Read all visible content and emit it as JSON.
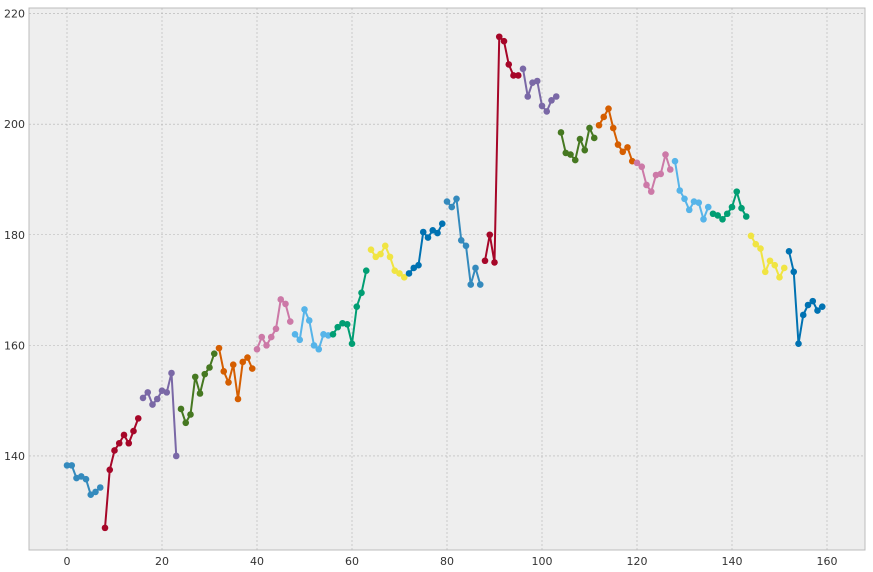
{
  "chart_data": {
    "type": "line",
    "title": "",
    "xlabel": "",
    "ylabel": "",
    "xlim": [
      -8,
      168
    ],
    "ylim": [
      123,
      221
    ],
    "xticks": [
      0,
      20,
      40,
      60,
      80,
      100,
      120,
      140,
      160
    ],
    "yticks": [
      140,
      160,
      180,
      200,
      220
    ],
    "grid": true,
    "legend": "none",
    "marker": "circle",
    "series": [
      {
        "color": "#348ABD",
        "points": [
          [
            0,
            138.3
          ],
          [
            1,
            138.3
          ],
          [
            2,
            136
          ],
          [
            3,
            136.3
          ],
          [
            4,
            135.8
          ],
          [
            5,
            133
          ],
          [
            6,
            133.5
          ],
          [
            7,
            134.3
          ]
        ]
      },
      {
        "color": "#A60628",
        "points": [
          [
            8,
            127
          ],
          [
            9,
            137.5
          ],
          [
            10,
            141
          ],
          [
            11,
            142.3
          ],
          [
            12,
            143.8
          ],
          [
            13,
            142.3
          ],
          [
            14,
            144.5
          ],
          [
            15,
            146.8
          ]
        ]
      },
      {
        "color": "#7A68A6",
        "points": [
          [
            16,
            150.5
          ],
          [
            17,
            151.5
          ],
          [
            18,
            149.3
          ],
          [
            19,
            150.3
          ],
          [
            20,
            151.8
          ],
          [
            21,
            151.5
          ],
          [
            22,
            155
          ],
          [
            23,
            140
          ]
        ]
      },
      {
        "color": "#467821",
        "points": [
          [
            24,
            148.5
          ],
          [
            25,
            146
          ],
          [
            26,
            147.5
          ],
          [
            27,
            154.3
          ],
          [
            28,
            151.3
          ],
          [
            29,
            154.8
          ],
          [
            30,
            156
          ],
          [
            31,
            158.5
          ]
        ]
      },
      {
        "color": "#D55E00",
        "points": [
          [
            32,
            159.5
          ],
          [
            33,
            155.3
          ],
          [
            34,
            153.3
          ],
          [
            35,
            156.5
          ],
          [
            36,
            150.3
          ],
          [
            37,
            157
          ],
          [
            38,
            157.8
          ],
          [
            39,
            155.8
          ]
        ]
      },
      {
        "color": "#CC79A7",
        "points": [
          [
            40,
            159.3
          ],
          [
            41,
            161.5
          ],
          [
            42,
            160
          ],
          [
            43,
            161.5
          ],
          [
            44,
            163
          ],
          [
            45,
            168.3
          ],
          [
            46,
            167.5
          ],
          [
            47,
            164.3
          ]
        ]
      },
      {
        "color": "#56B4E9",
        "points": [
          [
            48,
            162
          ],
          [
            49,
            161
          ],
          [
            50,
            166.5
          ],
          [
            51,
            164.5
          ],
          [
            52,
            160
          ],
          [
            53,
            159.3
          ],
          [
            54,
            162
          ],
          [
            55,
            161.8
          ]
        ]
      },
      {
        "color": "#009E73",
        "points": [
          [
            56,
            162
          ],
          [
            57,
            163.3
          ],
          [
            58,
            164
          ],
          [
            59,
            163.8
          ],
          [
            60,
            160.3
          ],
          [
            61,
            167
          ],
          [
            62,
            169.5
          ],
          [
            63,
            173.5
          ]
        ]
      },
      {
        "color": "#F0E442",
        "points": [
          [
            64,
            177.3
          ],
          [
            65,
            176
          ],
          [
            66,
            176.5
          ],
          [
            67,
            178
          ],
          [
            68,
            176
          ],
          [
            69,
            173.5
          ],
          [
            70,
            173
          ],
          [
            71,
            172.3
          ]
        ]
      },
      {
        "color": "#0072B2",
        "points": [
          [
            72,
            173
          ],
          [
            73,
            174
          ],
          [
            74,
            174.5
          ],
          [
            75,
            180.5
          ],
          [
            76,
            179.5
          ],
          [
            77,
            180.8
          ],
          [
            78,
            180.3
          ],
          [
            79,
            182
          ]
        ]
      },
      {
        "color": "#348ABD",
        "points": [
          [
            80,
            186
          ],
          [
            81,
            185
          ],
          [
            82,
            186.5
          ],
          [
            83,
            179
          ],
          [
            84,
            178
          ],
          [
            85,
            171
          ],
          [
            86,
            174
          ],
          [
            87,
            171
          ]
        ]
      },
      {
        "color": "#A60628",
        "points": [
          [
            88,
            175.3
          ],
          [
            89,
            180
          ],
          [
            90,
            175
          ],
          [
            91,
            215.8
          ],
          [
            92,
            215
          ],
          [
            93,
            210.8
          ],
          [
            94,
            208.8
          ],
          [
            95,
            208.8
          ]
        ]
      },
      {
        "color": "#7A68A6",
        "points": [
          [
            96,
            210
          ],
          [
            97,
            205
          ],
          [
            98,
            207.5
          ],
          [
            99,
            207.8
          ],
          [
            100,
            203.3
          ],
          [
            101,
            202.3
          ],
          [
            102,
            204.3
          ],
          [
            103,
            205
          ]
        ]
      },
      {
        "color": "#467821",
        "points": [
          [
            104,
            198.5
          ],
          [
            105,
            194.8
          ],
          [
            106,
            194.5
          ],
          [
            107,
            193.5
          ],
          [
            108,
            197.3
          ],
          [
            109,
            195.3
          ],
          [
            110,
            199.3
          ],
          [
            111,
            197.5
          ]
        ]
      },
      {
        "color": "#D55E00",
        "points": [
          [
            112,
            199.8
          ],
          [
            113,
            201.3
          ],
          [
            114,
            202.8
          ],
          [
            115,
            199.3
          ],
          [
            116,
            196.3
          ],
          [
            117,
            195
          ],
          [
            118,
            195.8
          ],
          [
            119,
            193.3
          ]
        ]
      },
      {
        "color": "#CC79A7",
        "points": [
          [
            120,
            193
          ],
          [
            121,
            192.3
          ],
          [
            122,
            189
          ],
          [
            123,
            187.8
          ],
          [
            124,
            190.8
          ],
          [
            125,
            191
          ],
          [
            126,
            194.5
          ],
          [
            127,
            191.8
          ]
        ]
      },
      {
        "color": "#56B4E9",
        "points": [
          [
            128,
            193.3
          ],
          [
            129,
            188
          ],
          [
            130,
            186.5
          ],
          [
            131,
            184.5
          ],
          [
            132,
            186
          ],
          [
            133,
            185.8
          ],
          [
            134,
            182.8
          ],
          [
            135,
            185
          ]
        ]
      },
      {
        "color": "#009E73",
        "points": [
          [
            136,
            183.8
          ],
          [
            137,
            183.5
          ],
          [
            138,
            182.8
          ],
          [
            139,
            183.8
          ],
          [
            140,
            185
          ],
          [
            141,
            187.8
          ],
          [
            142,
            184.8
          ],
          [
            143,
            183.3
          ]
        ]
      },
      {
        "color": "#F0E442",
        "points": [
          [
            144,
            179.8
          ],
          [
            145,
            178.3
          ],
          [
            146,
            177.5
          ],
          [
            147,
            173.3
          ],
          [
            148,
            175.3
          ],
          [
            149,
            174.5
          ],
          [
            150,
            172.3
          ],
          [
            151,
            174
          ]
        ]
      },
      {
        "color": "#0072B2",
        "points": [
          [
            152,
            177
          ],
          [
            153,
            173.3
          ],
          [
            154,
            160.3
          ],
          [
            155,
            165.5
          ],
          [
            156,
            167.3
          ],
          [
            157,
            168
          ],
          [
            158,
            166.3
          ],
          [
            159,
            167
          ]
        ]
      }
    ]
  }
}
